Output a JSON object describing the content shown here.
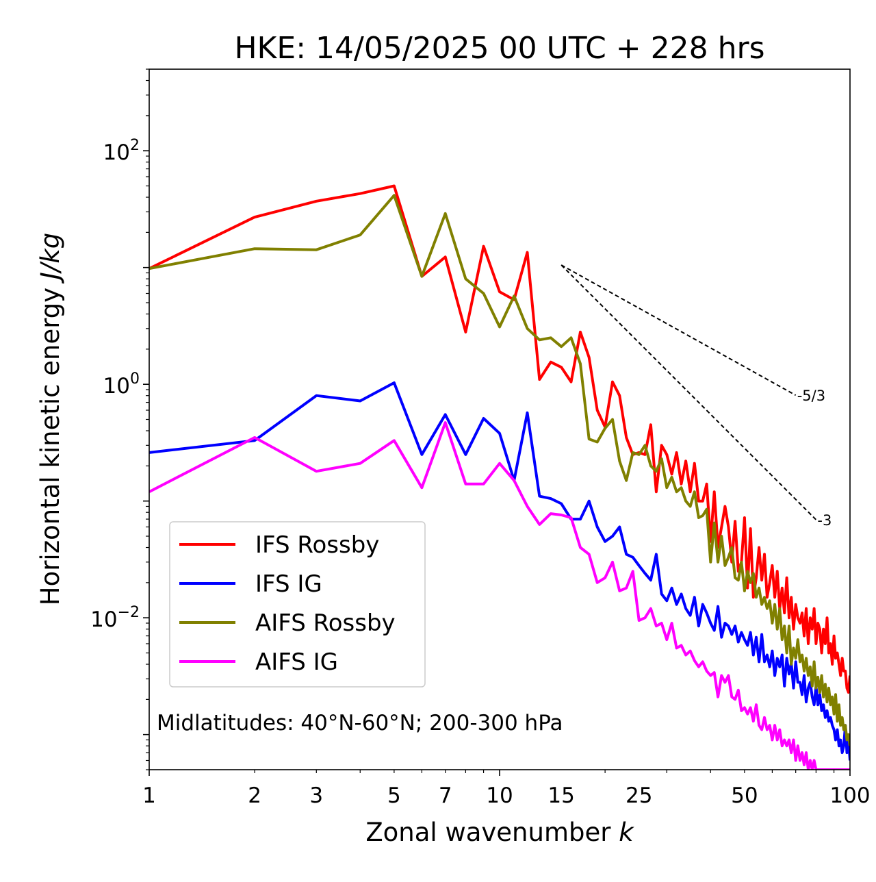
{
  "chart_data": {
    "type": "line",
    "title": "HKE: 14/05/2025 00 UTC + 228 hrs",
    "xlabel": "Zonal wavenumber ",
    "xlabel_italic": "k",
    "ylabel": "Horizontal kinetic energy ",
    "ylabel_italic": "J/kg",
    "x_scale": "log",
    "y_scale": "log",
    "xlim": [
      1,
      100
    ],
    "ylim": [
      0.0005,
      500
    ],
    "x_ticks": [
      1,
      2,
      3,
      5,
      7,
      10,
      15,
      25,
      50,
      100
    ],
    "x_tick_labels": [
      "1",
      "2",
      "3",
      "5",
      "7",
      "10",
      "15",
      "25",
      "50",
      "100"
    ],
    "y_ticks": [
      {
        "value": 100,
        "base": "10",
        "exp": "2"
      },
      {
        "value": 1,
        "base": "10",
        "exp": "0"
      },
      {
        "value": 0.01,
        "base": "10",
        "exp": "−2"
      }
    ],
    "grid": false,
    "legend_position": "lower-left",
    "annotation": "Midlatitudes: 40°N-60°N; 200-300 hPa",
    "reference_lines": [
      {
        "label": "-5/3",
        "slope": -1.6667,
        "x_start": 15,
        "x_end": 70,
        "y_start": 10.5
      },
      {
        "label": "-3",
        "slope": -3,
        "x_start": 15,
        "x_end": 80,
        "y_start": 10.5
      }
    ],
    "series": [
      {
        "name": "IFS Rossby",
        "color": "#ff0000",
        "x": [
          1,
          2,
          3,
          4,
          5,
          6,
          7,
          8,
          9,
          10,
          11,
          12,
          13,
          14,
          15,
          16,
          17,
          18,
          19,
          20,
          21,
          22,
          23,
          24,
          25,
          26,
          27,
          28,
          29,
          30,
          31,
          32,
          33,
          34,
          35,
          36,
          37,
          38,
          39,
          40,
          41,
          42,
          43,
          44,
          45,
          46,
          47,
          48,
          49,
          50,
          51,
          52,
          53,
          54,
          55,
          56,
          57,
          58,
          59,
          60,
          61,
          62,
          63,
          64,
          65,
          66,
          67,
          68,
          69,
          70,
          71,
          72,
          73,
          74,
          75,
          76,
          77,
          78,
          79,
          80,
          81,
          82,
          83,
          84,
          85,
          86,
          87,
          88,
          89,
          90,
          91,
          92,
          93,
          94,
          95,
          96,
          97,
          98,
          99,
          100
        ],
        "y": [
          9.8,
          27,
          37,
          43,
          50,
          8.4,
          12.3,
          2.8,
          15.2,
          6.2,
          5.3,
          13.5,
          1.1,
          1.55,
          1.4,
          1.05,
          2.8,
          1.7,
          0.6,
          0.43,
          1.05,
          0.8,
          0.35,
          0.25,
          0.26,
          0.25,
          0.45,
          0.12,
          0.3,
          0.25,
          0.17,
          0.26,
          0.14,
          0.22,
          0.12,
          0.21,
          0.1,
          0.1,
          0.14,
          0.045,
          0.12,
          0.04,
          0.06,
          0.09,
          0.06,
          0.03,
          0.067,
          0.025,
          0.03,
          0.072,
          0.018,
          0.058,
          0.015,
          0.022,
          0.04,
          0.021,
          0.035,
          0.015,
          0.02,
          0.028,
          0.015,
          0.025,
          0.012,
          0.018,
          0.011,
          0.022,
          0.01,
          0.015,
          0.008,
          0.013,
          0.01,
          0.009,
          0.011,
          0.007,
          0.012,
          0.006,
          0.01,
          0.008,
          0.012,
          0.006,
          0.009,
          0.008,
          0.005,
          0.008,
          0.006,
          0.01,
          0.005,
          0.006,
          0.004,
          0.007,
          0.0045,
          0.005,
          0.004,
          0.0032,
          0.0045,
          0.0035,
          0.0035,
          0.0025,
          0.0023,
          0.0032
        ]
      },
      {
        "name": "IFS IG",
        "color": "#0000ff",
        "x": [
          1,
          2,
          3,
          4,
          5,
          6,
          7,
          8,
          9,
          10,
          11,
          12,
          13,
          14,
          15,
          16,
          17,
          18,
          19,
          20,
          21,
          22,
          23,
          24,
          25,
          26,
          27,
          28,
          29,
          30,
          31,
          32,
          33,
          34,
          35,
          36,
          37,
          38,
          39,
          40,
          41,
          42,
          43,
          44,
          45,
          46,
          47,
          48,
          49,
          50,
          51,
          52,
          53,
          54,
          55,
          56,
          57,
          58,
          59,
          60,
          61,
          62,
          63,
          64,
          65,
          66,
          67,
          68,
          69,
          70,
          71,
          72,
          73,
          74,
          75,
          76,
          77,
          78,
          79,
          80,
          81,
          82,
          83,
          84,
          85,
          86,
          87,
          88,
          89,
          90,
          91,
          92,
          93,
          94,
          95,
          96,
          97,
          98,
          99,
          100
        ],
        "y": [
          0.26,
          0.33,
          0.8,
          0.72,
          1.03,
          0.25,
          0.55,
          0.25,
          0.51,
          0.38,
          0.15,
          0.57,
          0.11,
          0.105,
          0.095,
          0.07,
          0.07,
          0.1,
          0.06,
          0.045,
          0.05,
          0.06,
          0.035,
          0.033,
          0.028,
          0.024,
          0.021,
          0.035,
          0.016,
          0.014,
          0.018,
          0.013,
          0.016,
          0.012,
          0.0105,
          0.015,
          0.0085,
          0.013,
          0.011,
          0.009,
          0.0078,
          0.0125,
          0.0068,
          0.009,
          0.0085,
          0.0072,
          0.0085,
          0.0062,
          0.0075,
          0.0065,
          0.0058,
          0.0075,
          0.0048,
          0.0068,
          0.0042,
          0.0072,
          0.0042,
          0.0048,
          0.0038,
          0.0052,
          0.0032,
          0.0045,
          0.0038,
          0.0048,
          0.0026,
          0.0045,
          0.0033,
          0.0041,
          0.0025,
          0.0042,
          0.0028,
          0.0028,
          0.0022,
          0.0032,
          0.0019,
          0.0025,
          0.0028,
          0.0021,
          0.0018,
          0.0026,
          0.0018,
          0.0022,
          0.0016,
          0.0018,
          0.0014,
          0.0016,
          0.0013,
          0.0014,
          0.0012,
          0.0011,
          0.0009,
          0.0011,
          0.0008,
          0.0009,
          0.0007,
          0.0008,
          0.0012,
          0.0007,
          0.0009,
          0.0006
        ]
      },
      {
        "name": "AIFS Rossby",
        "color": "#808000",
        "x": [
          1,
          2,
          3,
          4,
          5,
          6,
          7,
          8,
          9,
          10,
          11,
          12,
          13,
          14,
          15,
          16,
          17,
          18,
          19,
          20,
          21,
          22,
          23,
          24,
          25,
          26,
          27,
          28,
          29,
          30,
          31,
          32,
          33,
          34,
          35,
          36,
          37,
          38,
          39,
          40,
          41,
          42,
          43,
          44,
          45,
          46,
          47,
          48,
          49,
          50,
          51,
          52,
          53,
          54,
          55,
          56,
          57,
          58,
          59,
          60,
          61,
          62,
          63,
          64,
          65,
          66,
          67,
          68,
          69,
          70,
          71,
          72,
          73,
          74,
          75,
          76,
          77,
          78,
          79,
          80,
          81,
          82,
          83,
          84,
          85,
          86,
          87,
          88,
          89,
          90,
          91,
          92,
          93,
          94,
          95,
          96,
          97,
          98,
          99,
          100
        ],
        "y": [
          9.8,
          14.5,
          14.2,
          19,
          41.5,
          8.4,
          29,
          8,
          6,
          3.1,
          5.7,
          3,
          2.4,
          2.5,
          2.1,
          2.5,
          1.5,
          0.34,
          0.32,
          0.42,
          0.5,
          0.22,
          0.15,
          0.26,
          0.25,
          0.3,
          0.2,
          0.18,
          0.23,
          0.13,
          0.16,
          0.12,
          0.13,
          0.1,
          0.09,
          0.12,
          0.072,
          0.075,
          0.085,
          0.03,
          0.065,
          0.03,
          0.05,
          0.028,
          0.033,
          0.04,
          0.022,
          0.021,
          0.03,
          0.017,
          0.025,
          0.02,
          0.024,
          0.015,
          0.018,
          0.013,
          0.015,
          0.012,
          0.014,
          0.009,
          0.013,
          0.008,
          0.012,
          0.0065,
          0.0085,
          0.005,
          0.0085,
          0.004,
          0.0055,
          0.0045,
          0.0065,
          0.0042,
          0.0048,
          0.0035,
          0.0045,
          0.0032,
          0.0038,
          0.0026,
          0.0042,
          0.0025,
          0.0031,
          0.0023,
          0.0032,
          0.0021,
          0.0027,
          0.0019,
          0.0025,
          0.0018,
          0.0021,
          0.0015,
          0.0022,
          0.0013,
          0.0018,
          0.0012,
          0.0014,
          0.0011,
          0.0012,
          0.0009,
          0.001,
          0.0008
        ]
      },
      {
        "name": "AIFS IG",
        "color": "#ff00ff",
        "x": [
          1,
          2,
          3,
          4,
          5,
          6,
          7,
          8,
          9,
          10,
          11,
          12,
          13,
          14,
          15,
          16,
          17,
          18,
          19,
          20,
          21,
          22,
          23,
          24,
          25,
          26,
          27,
          28,
          29,
          30,
          31,
          32,
          33,
          34,
          35,
          36,
          37,
          38,
          39,
          40,
          41,
          42,
          43,
          44,
          45,
          46,
          47,
          48,
          49,
          50,
          51,
          52,
          53,
          54,
          55,
          56,
          57,
          58,
          59,
          60,
          61,
          62,
          63,
          64,
          65,
          66,
          67,
          68,
          69,
          70,
          71,
          72,
          73,
          74,
          75,
          76,
          77,
          78,
          79,
          80,
          81,
          82,
          83,
          84,
          85,
          86,
          87,
          88,
          89,
          90,
          91,
          92,
          93,
          94,
          95,
          96,
          97,
          98,
          99,
          100
        ],
        "y": [
          0.12,
          0.35,
          0.18,
          0.21,
          0.33,
          0.13,
          0.47,
          0.14,
          0.14,
          0.21,
          0.15,
          0.09,
          0.063,
          0.078,
          0.076,
          0.072,
          0.04,
          0.035,
          0.02,
          0.022,
          0.03,
          0.017,
          0.018,
          0.025,
          0.0095,
          0.01,
          0.012,
          0.0085,
          0.009,
          0.0065,
          0.009,
          0.0055,
          0.0058,
          0.0048,
          0.0052,
          0.0043,
          0.0038,
          0.0042,
          0.0035,
          0.0032,
          0.0034,
          0.0021,
          0.0032,
          0.0028,
          0.0032,
          0.0021,
          0.002,
          0.0024,
          0.0016,
          0.0017,
          0.0015,
          0.0017,
          0.0013,
          0.0018,
          0.0012,
          0.0011,
          0.0014,
          0.0011,
          0.0012,
          0.0009,
          0.0012,
          0.0009,
          0.0011,
          0.0008,
          0.0009,
          0.0008,
          0.0009,
          0.0007,
          0.0009,
          0.0006,
          0.0008,
          0.0006,
          0.0007,
          0.00055,
          0.0007,
          0.0005,
          0.0006,
          0.0005,
          0.0006,
          0.0005,
          0.0005,
          0.0005,
          0.0005,
          0.0005,
          0.0005,
          0.0005,
          0.0005,
          0.0005,
          0.0005,
          0.0005,
          0.0005,
          0.0005,
          0.0005,
          0.0005,
          0.0005,
          0.0005,
          0.0005,
          0.0005,
          0.0005,
          0.0005
        ]
      }
    ]
  }
}
